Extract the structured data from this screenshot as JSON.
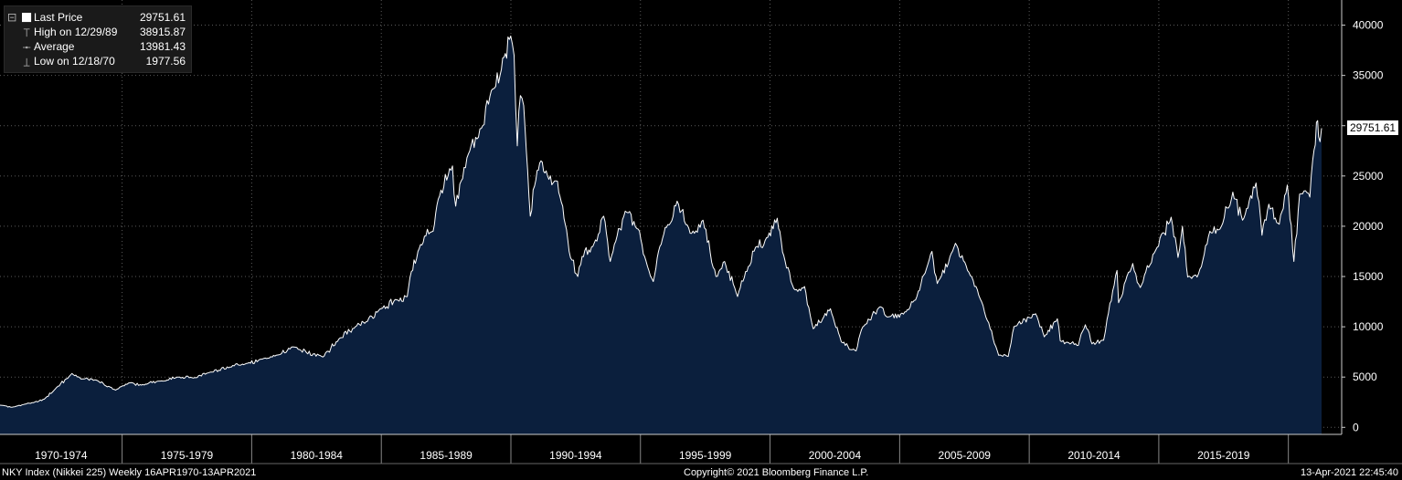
{
  "chart_data": {
    "type": "area",
    "series_name": "Last Price",
    "x_start": "1970-04-16",
    "x_end": "2021-04-13",
    "y_range": [
      -700,
      42500
    ],
    "y_ticks": [
      0,
      5000,
      10000,
      15000,
      20000,
      25000,
      30000,
      35000,
      40000
    ],
    "y_tick_labels": [
      "0",
      "5000",
      "10000",
      "15000",
      "20000",
      "25000",
      "30000",
      "35000",
      "40000"
    ],
    "x_category_labels": [
      "1970-1974",
      "1975-1979",
      "1980-1984",
      "1985-1989",
      "1990-1994",
      "1995-1999",
      "2000-2004",
      "2005-2009",
      "2010-2014",
      "2015-2019"
    ],
    "grid": true,
    "grid_style": "dotted",
    "legend_position": "top-left",
    "colors": {
      "background": "#000000",
      "area_fill": "#0b1f3d",
      "line": "#ffffff",
      "grid": "#5a5a5a",
      "legend_bg": "#1a1a1a",
      "last_tag_bg": "#ffffff"
    },
    "points": [
      [
        "1970-04-16",
        2200
      ],
      [
        "1970-10-01",
        2000
      ],
      [
        "1971-04-01",
        2300
      ],
      [
        "1971-08-01",
        2450
      ],
      [
        "1972-01-01",
        2800
      ],
      [
        "1972-06-01",
        3800
      ],
      [
        "1973-01-24",
        5350
      ],
      [
        "1973-06-01",
        4800
      ],
      [
        "1974-01-01",
        4700
      ],
      [
        "1974-10-01",
        3700
      ],
      [
        "1975-04-01",
        4400
      ],
      [
        "1975-10-01",
        4200
      ],
      [
        "1976-06-01",
        4600
      ],
      [
        "1977-03-01",
        5000
      ],
      [
        "1977-10-01",
        4900
      ],
      [
        "1978-06-01",
        5500
      ],
      [
        "1979-03-01",
        6000
      ],
      [
        "1979-10-01",
        6300
      ],
      [
        "1980-06-01",
        6800
      ],
      [
        "1981-01-01",
        7200
      ],
      [
        "1981-08-01",
        8000
      ],
      [
        "1982-10-01",
        7000
      ],
      [
        "1983-06-01",
        8900
      ],
      [
        "1984-01-01",
        10000
      ],
      [
        "1984-06-01",
        10500
      ],
      [
        "1985-01-01",
        11800
      ],
      [
        "1985-08-01",
        12700
      ],
      [
        "1986-01-01",
        13000
      ],
      [
        "1986-03-01",
        15500
      ],
      [
        "1986-06-01",
        17500
      ],
      [
        "1986-09-01",
        19000
      ],
      [
        "1987-01-01",
        19500
      ],
      [
        "1987-04-01",
        23000
      ],
      [
        "1987-10-01",
        26000
      ],
      [
        "1987-11-15",
        22000
      ],
      [
        "1988-02-01",
        24500
      ],
      [
        "1988-06-01",
        27500
      ],
      [
        "1988-12-01",
        30000
      ],
      [
        "1989-04-01",
        33500
      ],
      [
        "1989-08-01",
        35000
      ],
      [
        "1989-12-29",
        38915.87
      ],
      [
        "1990-02-15",
        37000
      ],
      [
        "1990-04-01",
        28000
      ],
      [
        "1990-05-15",
        33000
      ],
      [
        "1990-07-01",
        32000
      ],
      [
        "1990-10-01",
        21000
      ],
      [
        "1990-12-01",
        24000
      ],
      [
        "1991-03-01",
        26500
      ],
      [
        "1991-06-01",
        25000
      ],
      [
        "1991-10-01",
        24500
      ],
      [
        "1992-01-01",
        22000
      ],
      [
        "1992-04-01",
        17500
      ],
      [
        "1992-08-01",
        15000
      ],
      [
        "1992-10-01",
        17000
      ],
      [
        "1993-03-01",
        18000
      ],
      [
        "1993-08-01",
        21000
      ],
      [
        "1993-11-01",
        16500
      ],
      [
        "1994-06-01",
        21500
      ],
      [
        "1994-12-01",
        19700
      ],
      [
        "1995-03-01",
        17000
      ],
      [
        "1995-07-01",
        14500
      ],
      [
        "1995-10-01",
        18000
      ],
      [
        "1996-06-01",
        22500
      ],
      [
        "1996-12-01",
        19300
      ],
      [
        "1997-06-01",
        20600
      ],
      [
        "1997-12-01",
        15000
      ],
      [
        "1998-04-01",
        16500
      ],
      [
        "1998-10-01",
        13000
      ],
      [
        "1999-03-01",
        16000
      ],
      [
        "1999-07-01",
        18000
      ],
      [
        "1999-12-01",
        18900
      ],
      [
        "2000-04-12",
        20800
      ],
      [
        "2000-08-01",
        16500
      ],
      [
        "2000-12-01",
        13800
      ],
      [
        "2001-05-01",
        14000
      ],
      [
        "2001-09-01",
        9800
      ],
      [
        "2002-05-01",
        11800
      ],
      [
        "2002-10-01",
        8500
      ],
      [
        "2003-04-28",
        7600
      ],
      [
        "2003-08-01",
        10000
      ],
      [
        "2004-04-01",
        12000
      ],
      [
        "2004-08-01",
        11000
      ],
      [
        "2005-04-01",
        11500
      ],
      [
        "2005-09-01",
        13000
      ],
      [
        "2006-04-01",
        17500
      ],
      [
        "2006-06-15",
        14300
      ],
      [
        "2007-02-26",
        18300
      ],
      [
        "2007-08-15",
        15600
      ],
      [
        "2008-03-01",
        12500
      ],
      [
        "2008-10-27",
        7160
      ],
      [
        "2009-03-10",
        7054
      ],
      [
        "2009-06-01",
        10000
      ],
      [
        "2010-04-01",
        11300
      ],
      [
        "2010-08-01",
        9000
      ],
      [
        "2011-02-01",
        10800
      ],
      [
        "2011-03-15",
        8600
      ],
      [
        "2011-11-25",
        8160
      ],
      [
        "2012-03-01",
        10200
      ],
      [
        "2012-06-04",
        8300
      ],
      [
        "2012-11-14",
        8660
      ],
      [
        "2013-01-01",
        10700
      ],
      [
        "2013-05-22",
        15600
      ],
      [
        "2013-06-13",
        12400
      ],
      [
        "2013-12-30",
        16300
      ],
      [
        "2014-04-14",
        13900
      ],
      [
        "2014-12-08",
        17900
      ],
      [
        "2015-06-24",
        20900
      ],
      [
        "2015-09-29",
        16900
      ],
      [
        "2015-12-01",
        20000
      ],
      [
        "2016-02-12",
        14950
      ],
      [
        "2016-06-24",
        14950
      ],
      [
        "2016-12-21",
        19500
      ],
      [
        "2017-06-01",
        20000
      ],
      [
        "2017-11-09",
        23400
      ],
      [
        "2018-03-26",
        20600
      ],
      [
        "2018-10-02",
        24300
      ],
      [
        "2018-12-25",
        19100
      ],
      [
        "2019-04-01",
        22200
      ],
      [
        "2019-08-26",
        20200
      ],
      [
        "2019-12-17",
        24100
      ],
      [
        "2020-03-19",
        16500
      ],
      [
        "2020-06-08",
        23200
      ],
      [
        "2020-10-30",
        22900
      ],
      [
        "2020-12-29",
        27600
      ],
      [
        "2021-02-16",
        30500
      ],
      [
        "2021-03-01",
        28900
      ],
      [
        "2021-04-13",
        29751.61
      ]
    ]
  },
  "legend": {
    "last_price_label": "Last Price",
    "last_price_value": "29751.61",
    "high_label": "High on 12/29/89",
    "high_value": "38915.87",
    "average_label": "Average",
    "average_value": "13981.43",
    "low_label": "Low on 12/18/70",
    "low_value": "1977.56"
  },
  "last_tag": "29751.61",
  "footer": {
    "left": "NKY Index (Nikkei 225)  Weekly 16APR1970-13APR2021",
    "center": "Copyright© 2021 Bloomberg Finance L.P.",
    "right": "13-Apr-2021 22:45:40"
  }
}
